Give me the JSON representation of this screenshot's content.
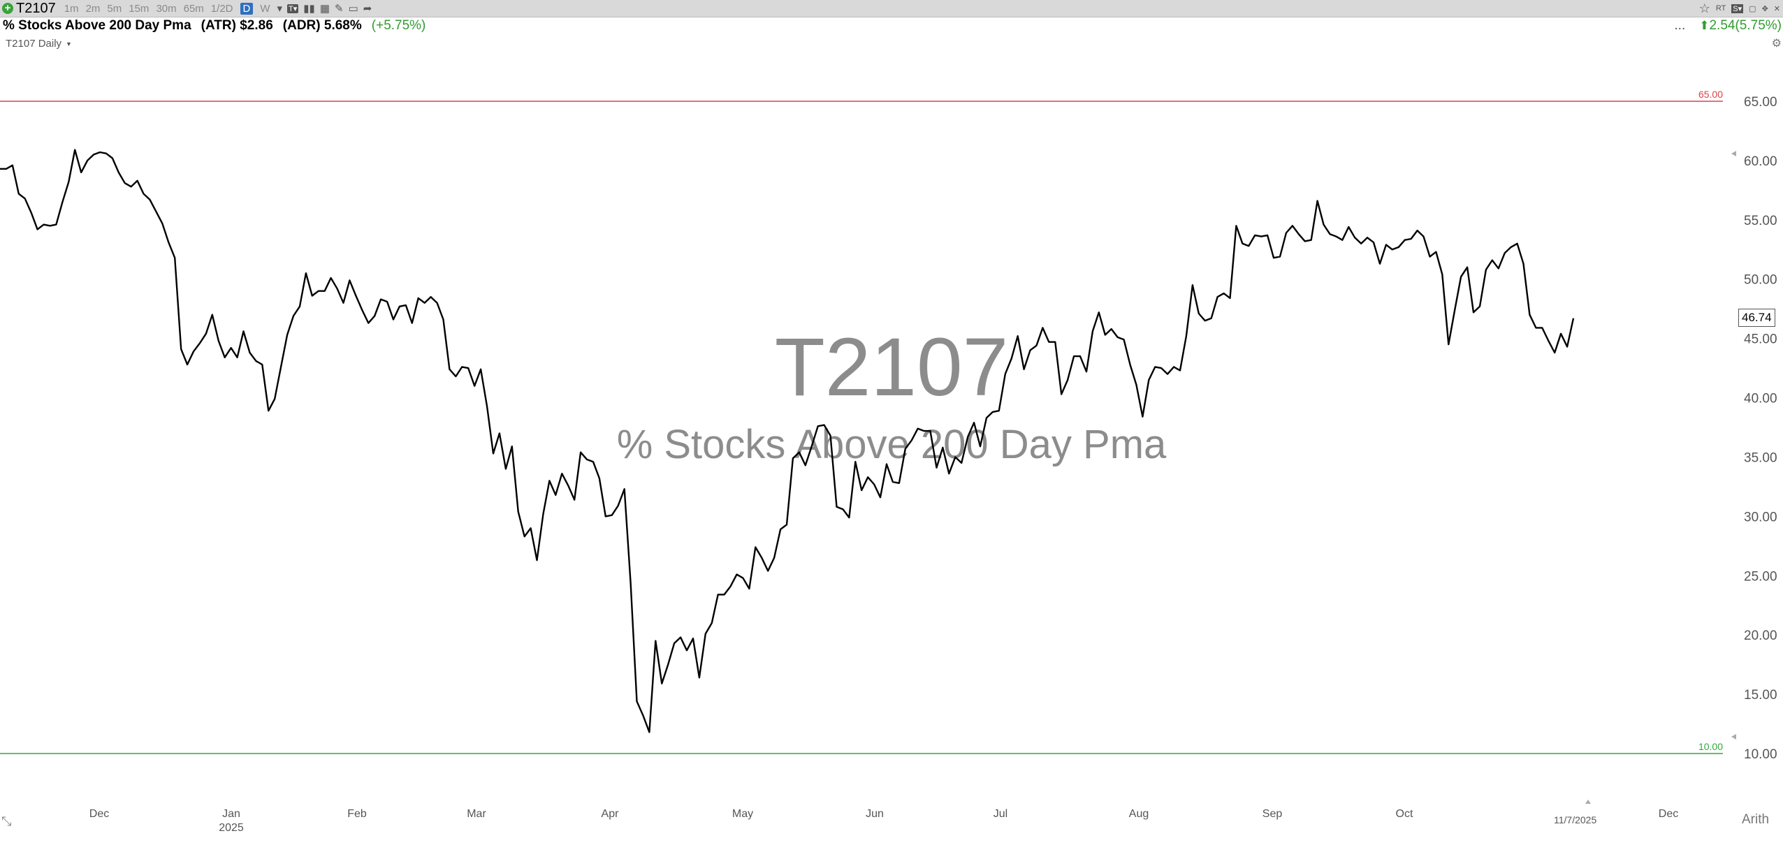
{
  "toolbar": {
    "symbol": "T2107",
    "timeframes": [
      "1m",
      "2m",
      "5m",
      "15m",
      "30m",
      "65m",
      "1/2D",
      "D",
      "W"
    ],
    "active_timeframe": "D"
  },
  "info": {
    "title": "% Stocks Above 200 Day Pma",
    "atr": "(ATR) $2.86",
    "adr": "(ADR) 5.68%",
    "pct_change": "(+5.75%)",
    "ellipsis": "...",
    "change": "2.54(5.75%)"
  },
  "chart_label": "T2107 Daily",
  "watermark": {
    "symbol": "T2107",
    "name": "% Stocks Above 200 Day Pma"
  },
  "last_price": "46.74",
  "last_date": "11/7/2025",
  "scale_mode": "Arith",
  "colors": {
    "upper_line": "#d9434a",
    "lower_line": "#2eaa3a",
    "series": "#000000",
    "positive": "#2e9d2e"
  },
  "chart_data": {
    "type": "line",
    "title": "% Stocks Above 200 Day Pma",
    "xlabel": "",
    "ylabel": "",
    "ylim": [
      8,
      69.5
    ],
    "y_ticks": [
      "65.00",
      "60.00",
      "55.00",
      "50.00",
      "45.00",
      "40.00",
      "35.00",
      "30.00",
      "25.00",
      "20.00",
      "15.00",
      "10.00"
    ],
    "x_labels": [
      "Dec",
      "Jan",
      "Feb",
      "Mar",
      "Apr",
      "May",
      "Jun",
      "Jul",
      "Aug",
      "Sep",
      "Oct",
      "Dec"
    ],
    "year_label": "2025",
    "reference_lines": [
      {
        "label": "65.00",
        "value": 65.0,
        "color": "#d9434a"
      },
      {
        "label": "10.00",
        "value": 10.0,
        "color": "#2eaa3a"
      }
    ],
    "grid": false,
    "series": [
      {
        "values": [
          59.3,
          59.3,
          59.6,
          57.2,
          56.8,
          55.6,
          54.2,
          54.6,
          54.5,
          54.6,
          56.5,
          58.2,
          60.9,
          59.0,
          60.0,
          60.5,
          60.7,
          60.6,
          60.2,
          59.0,
          58.1,
          57.8,
          58.3,
          57.2,
          56.7,
          55.7,
          54.7,
          53.1,
          51.8,
          44.1,
          42.8,
          43.9,
          44.6,
          45.4,
          47.0,
          44.8,
          43.4,
          44.2,
          43.4,
          45.6,
          43.8,
          43.1,
          42.8,
          38.9,
          39.9,
          42.6,
          45.3,
          46.9,
          47.7,
          50.5,
          48.6,
          49.0,
          49.0,
          50.1,
          49.2,
          48.0,
          49.9,
          48.6,
          47.4,
          46.3,
          46.9,
          48.3,
          48.1,
          46.6,
          47.7,
          47.8,
          46.3,
          48.4,
          48.0,
          48.5,
          48.0,
          46.6,
          42.4,
          41.8,
          42.6,
          42.5,
          41.0,
          42.4,
          39.3,
          35.3,
          37.0,
          34.0,
          35.9,
          30.4,
          28.3,
          29.0,
          26.3,
          30.2,
          33.0,
          31.8,
          33.6,
          32.6,
          31.4,
          35.4,
          34.8,
          34.6,
          33.2,
          30.0,
          30.1,
          30.9,
          32.3,
          24.4,
          14.4,
          13.2,
          11.8,
          19.5,
          15.9,
          17.5,
          19.3,
          19.8,
          18.7,
          19.7,
          16.4,
          20.1,
          21.0,
          23.4,
          23.4,
          24.1,
          25.1,
          24.8,
          23.9,
          27.4,
          26.5,
          25.4,
          26.5,
          28.9,
          29.3,
          34.9,
          35.4,
          34.3,
          35.9,
          37.6,
          37.7,
          36.8,
          30.8,
          30.6,
          29.9,
          34.6,
          32.2,
          33.3,
          32.7,
          31.6,
          34.4,
          32.9,
          32.8,
          35.7,
          36.4,
          37.4,
          37.2,
          37.2,
          34.1,
          35.8,
          33.6,
          35.0,
          34.5,
          36.7,
          37.9,
          35.9,
          38.3,
          38.8,
          38.9,
          42.0,
          43.3,
          45.2,
          42.4,
          44.0,
          44.4,
          45.9,
          44.7,
          44.7,
          40.3,
          41.5,
          43.5,
          43.5,
          42.2,
          45.6,
          47.2,
          45.3,
          45.8,
          45.1,
          44.9,
          42.8,
          41.1,
          38.4,
          41.5,
          42.6,
          42.5,
          42.0,
          42.6,
          42.3,
          45.2,
          49.5,
          47.1,
          46.5,
          46.7,
          48.5,
          48.8,
          48.4,
          54.5,
          53.0,
          52.8,
          53.7,
          53.6,
          53.7,
          51.8,
          51.9,
          53.9,
          54.5,
          53.8,
          53.2,
          53.3,
          56.6,
          54.6,
          53.8,
          53.6,
          53.3,
          54.4,
          53.5,
          53.0,
          53.5,
          53.1,
          51.3,
          52.9,
          52.5,
          52.7,
          53.3,
          53.4,
          54.1,
          53.6,
          51.9,
          52.3,
          50.4,
          44.5,
          47.4,
          50.2,
          51.0,
          47.2,
          47.7,
          50.8,
          51.6,
          50.9,
          52.2,
          52.7,
          53.0,
          51.3,
          47.0,
          45.9,
          45.9,
          44.8,
          43.8,
          45.4,
          44.3,
          46.7
        ]
      }
    ]
  }
}
